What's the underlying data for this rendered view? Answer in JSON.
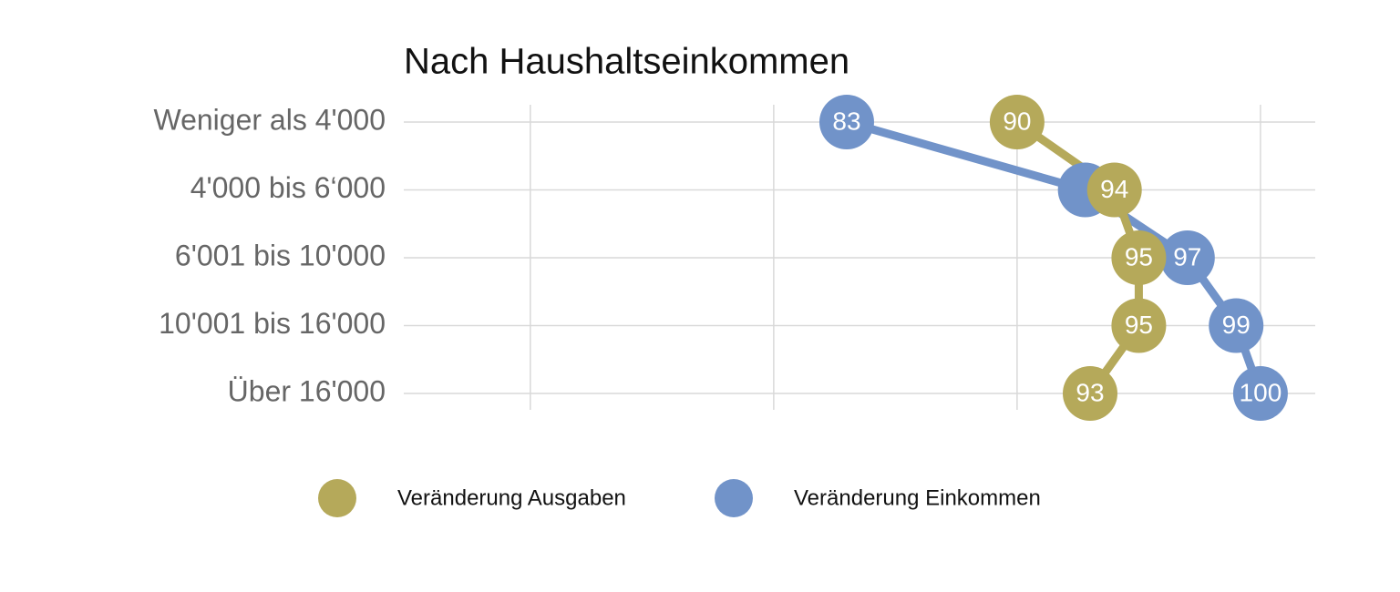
{
  "chart_data": {
    "type": "dot-line",
    "title": "Nach Haushaltseinkommen",
    "categories": [
      "Weniger als 4'000",
      "4'000 bis 6‘000",
      "6'001 bis 10'000",
      "10'001 bis 16'000",
      "Über 16'000"
    ],
    "series": [
      {
        "name": "Veränderung Einkommen",
        "color": "#7193c9",
        "values": [
          83,
          92.8,
          97,
          99,
          100
        ],
        "value_labels": [
          "83",
          null,
          "97",
          "99",
          "100"
        ]
      },
      {
        "name": "Veränderung Ausgaben",
        "color": "#b5a95a",
        "values": [
          90,
          94,
          95,
          95,
          93
        ]
      }
    ],
    "legend_order": [
      1,
      0
    ],
    "xlim": [
      64.8,
      102.25
    ],
    "xticks": [
      70,
      80,
      90,
      100
    ],
    "grid": true
  }
}
